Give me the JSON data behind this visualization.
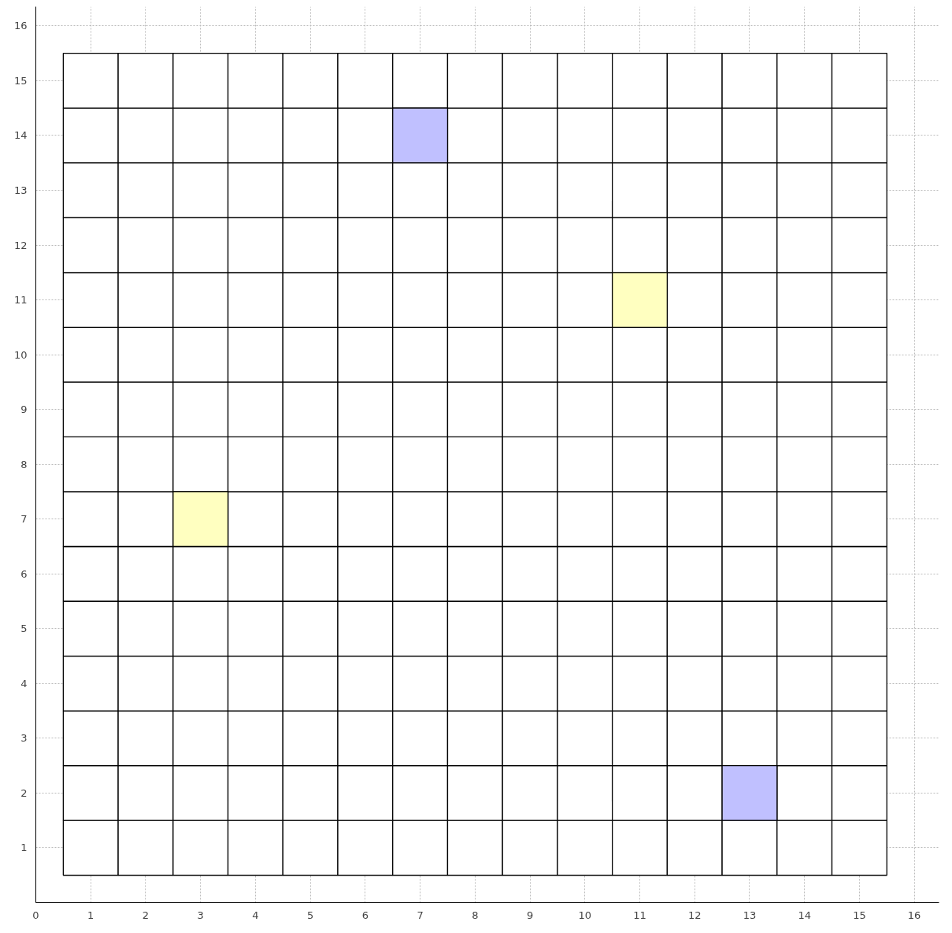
{
  "chart_data": {
    "type": "bar",
    "grid": true,
    "xlim": [
      0,
      16.45
    ],
    "ylim": [
      0,
      16.35
    ],
    "xticks": [
      0,
      1,
      2,
      3,
      4,
      5,
      6,
      7,
      8,
      9,
      10,
      11,
      12,
      13,
      14,
      15,
      16
    ],
    "yticks": [
      1,
      2,
      3,
      4,
      5,
      6,
      7,
      8,
      9,
      10,
      11,
      12,
      13,
      14,
      15,
      16
    ],
    "x": [
      1,
      2,
      3,
      4,
      5,
      6,
      7,
      8,
      9,
      10,
      11,
      12,
      13,
      14,
      15
    ],
    "series": [
      {
        "color": "#ffffff",
        "values": [
          1,
          1,
          1,
          1,
          1,
          1,
          1,
          1,
          1,
          1,
          1,
          1,
          1,
          1,
          1
        ],
        "base": [
          0.5,
          0.5,
          0.5,
          0.5,
          0.5,
          0.5,
          0.5,
          0.5,
          0.5,
          0.5,
          0.5,
          0.5,
          0.5,
          0.5,
          0.5
        ]
      },
      {
        "color": "#ffffff",
        "values": [
          1,
          1,
          1,
          1,
          1,
          1,
          1,
          1,
          1,
          1,
          1,
          1,
          null,
          1,
          1
        ],
        "base": [
          1.5,
          1.5,
          1.5,
          1.5,
          1.5,
          1.5,
          1.5,
          1.5,
          1.5,
          1.5,
          1.5,
          1.5,
          null,
          1.5,
          1.5
        ]
      },
      {
        "color": "#ffffff",
        "values": [
          1,
          1,
          1,
          1,
          1,
          1,
          1,
          1,
          1,
          1,
          1,
          1,
          1,
          1,
          1
        ],
        "base": [
          2.5,
          2.5,
          2.5,
          2.5,
          2.5,
          2.5,
          2.5,
          2.5,
          2.5,
          2.5,
          2.5,
          2.5,
          2.5,
          2.5,
          2.5
        ]
      },
      {
        "color": "#ffffff",
        "values": [
          1,
          1,
          1,
          1,
          1,
          1,
          1,
          1,
          1,
          1,
          1,
          1,
          1,
          1,
          1
        ],
        "base": [
          3.5,
          3.5,
          3.5,
          3.5,
          3.5,
          3.5,
          3.5,
          3.5,
          3.5,
          3.5,
          3.5,
          3.5,
          3.5,
          3.5,
          3.5
        ]
      },
      {
        "color": "#ffffff",
        "values": [
          1,
          1,
          1,
          1,
          1,
          1,
          1,
          1,
          1,
          1,
          1,
          1,
          1,
          1,
          1
        ],
        "base": [
          4.5,
          4.5,
          4.5,
          4.5,
          4.5,
          4.5,
          4.5,
          4.5,
          4.5,
          4.5,
          4.5,
          4.5,
          4.5,
          4.5,
          4.5
        ]
      },
      {
        "color": "#ffffff",
        "values": [
          1,
          1,
          1,
          1,
          1,
          1,
          1,
          1,
          1,
          1,
          1,
          1,
          1,
          1,
          1
        ],
        "base": [
          5.5,
          5.5,
          5.5,
          5.5,
          5.5,
          5.5,
          5.5,
          5.5,
          5.5,
          5.5,
          5.5,
          5.5,
          5.5,
          5.5,
          5.5
        ]
      },
      {
        "color": "#ffffff",
        "values": [
          1,
          1,
          null,
          1,
          1,
          1,
          1,
          1,
          1,
          1,
          1,
          1,
          1,
          1,
          1
        ],
        "base": [
          6.5,
          6.5,
          null,
          6.5,
          6.5,
          6.5,
          6.5,
          6.5,
          6.5,
          6.5,
          6.5,
          6.5,
          6.5,
          6.5,
          6.5
        ]
      },
      {
        "color": "#ffffff",
        "values": [
          1,
          1,
          1,
          1,
          1,
          1,
          1,
          1,
          1,
          1,
          1,
          1,
          1,
          1,
          1
        ],
        "base": [
          7.5,
          7.5,
          7.5,
          7.5,
          7.5,
          7.5,
          7.5,
          7.5,
          7.5,
          7.5,
          7.5,
          7.5,
          7.5,
          7.5,
          7.5
        ]
      },
      {
        "color": "#ffffff",
        "values": [
          1,
          1,
          1,
          1,
          1,
          1,
          1,
          1,
          1,
          1,
          1,
          1,
          1,
          1,
          1
        ],
        "base": [
          8.5,
          8.5,
          8.5,
          8.5,
          8.5,
          8.5,
          8.5,
          8.5,
          8.5,
          8.5,
          8.5,
          8.5,
          8.5,
          8.5,
          8.5
        ]
      },
      {
        "color": "#ffffff",
        "values": [
          1,
          1,
          1,
          1,
          1,
          1,
          1,
          1,
          1,
          1,
          1,
          1,
          1,
          1,
          1
        ],
        "base": [
          9.5,
          9.5,
          9.5,
          9.5,
          9.5,
          9.5,
          9.5,
          9.5,
          9.5,
          9.5,
          9.5,
          9.5,
          9.5,
          9.5,
          9.5
        ]
      },
      {
        "color": "#ffffff",
        "values": [
          1,
          1,
          1,
          1,
          1,
          1,
          1,
          1,
          1,
          1,
          null,
          1,
          1,
          1,
          1
        ],
        "base": [
          10.5,
          10.5,
          10.5,
          10.5,
          10.5,
          10.5,
          10.5,
          10.5,
          10.5,
          10.5,
          null,
          10.5,
          10.5,
          10.5,
          10.5
        ]
      },
      {
        "color": "#ffffff",
        "values": [
          1,
          1,
          1,
          1,
          1,
          1,
          1,
          1,
          1,
          1,
          1,
          1,
          1,
          1,
          1
        ],
        "base": [
          11.5,
          11.5,
          11.5,
          11.5,
          11.5,
          11.5,
          11.5,
          11.5,
          11.5,
          11.5,
          11.5,
          11.5,
          11.5,
          11.5,
          11.5
        ]
      },
      {
        "color": "#ffffff",
        "values": [
          1,
          1,
          1,
          1,
          1,
          1,
          1,
          1,
          1,
          1,
          1,
          1,
          1,
          1,
          1
        ],
        "base": [
          12.5,
          12.5,
          12.5,
          12.5,
          12.5,
          12.5,
          12.5,
          12.5,
          12.5,
          12.5,
          12.5,
          12.5,
          12.5,
          12.5,
          12.5
        ]
      },
      {
        "color": "#ffffff",
        "values": [
          1,
          1,
          1,
          1,
          1,
          1,
          null,
          1,
          1,
          1,
          1,
          1,
          1,
          1,
          1
        ],
        "base": [
          13.5,
          13.5,
          13.5,
          13.5,
          13.5,
          13.5,
          null,
          13.5,
          13.5,
          13.5,
          13.5,
          13.5,
          13.5,
          13.5,
          13.5
        ]
      },
      {
        "color": "#ffffff",
        "values": [
          1,
          1,
          1,
          1,
          1,
          1,
          1,
          1,
          1,
          1,
          1,
          1,
          1,
          1,
          1
        ],
        "base": [
          14.5,
          14.5,
          14.5,
          14.5,
          14.5,
          14.5,
          14.5,
          14.5,
          14.5,
          14.5,
          14.5,
          14.5,
          14.5,
          14.5,
          14.5
        ]
      },
      {
        "color": "#c0c0ff",
        "x": [
          7,
          13
        ],
        "values": [
          1,
          1
        ],
        "base": [
          13.5,
          1.5
        ]
      },
      {
        "color": "#ffffc0",
        "x": [
          3,
          11
        ],
        "values": [
          1,
          1
        ],
        "base": [
          6.5,
          10.5
        ]
      }
    ]
  }
}
